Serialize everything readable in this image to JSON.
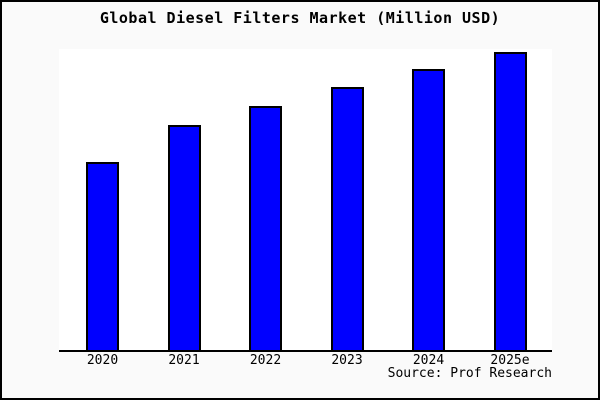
{
  "title": "Global Diesel Filters Market (Million USD)",
  "source_note": "Source: Prof Research",
  "colors": {
    "background": "#fafafa",
    "plot_background": "#ffffff",
    "bar_fill": "#0000ff",
    "bar_border": "#000000",
    "axis": "#000000",
    "text": "#000000"
  },
  "chart_data": {
    "type": "bar",
    "title": "Global Diesel Filters Market (Million USD)",
    "categories": [
      "2020",
      "2021",
      "2022",
      "2023",
      "2024",
      "2025e"
    ],
    "values": [
      63.1,
      75.5,
      81.9,
      88.3,
      94.3,
      100
    ],
    "xlabel": "",
    "ylabel": "",
    "ylim": [
      0,
      101
    ],
    "grid": false,
    "legend": "none",
    "y_axis_shown": false
  }
}
